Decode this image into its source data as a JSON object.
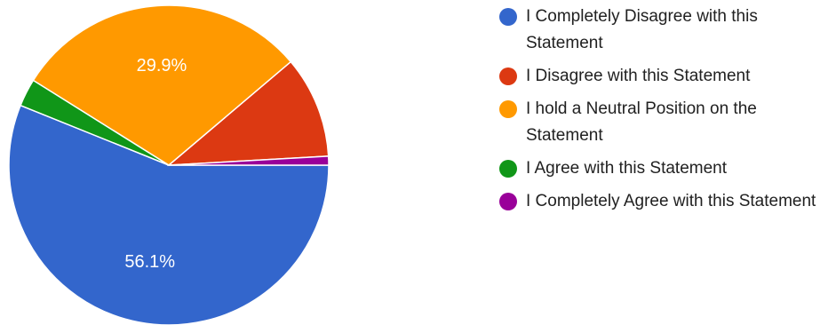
{
  "chart_data": {
    "type": "pie",
    "title": "",
    "categories": [
      "I Completely Disagree with this Statement",
      "I Disagree with this Statement",
      "I hold a Neutral Position on the Statement",
      "I Agree with this Statement",
      "I Completely Agree with this Statement"
    ],
    "values": [
      56.1,
      10.3,
      29.9,
      2.8,
      0.9
    ],
    "slice_labels": [
      "56.1%",
      "",
      "29.9%",
      "",
      ""
    ],
    "colors": [
      "#3366cc",
      "#dc3912",
      "#ff9900",
      "#109618",
      "#990099"
    ],
    "legend_position": "right"
  }
}
